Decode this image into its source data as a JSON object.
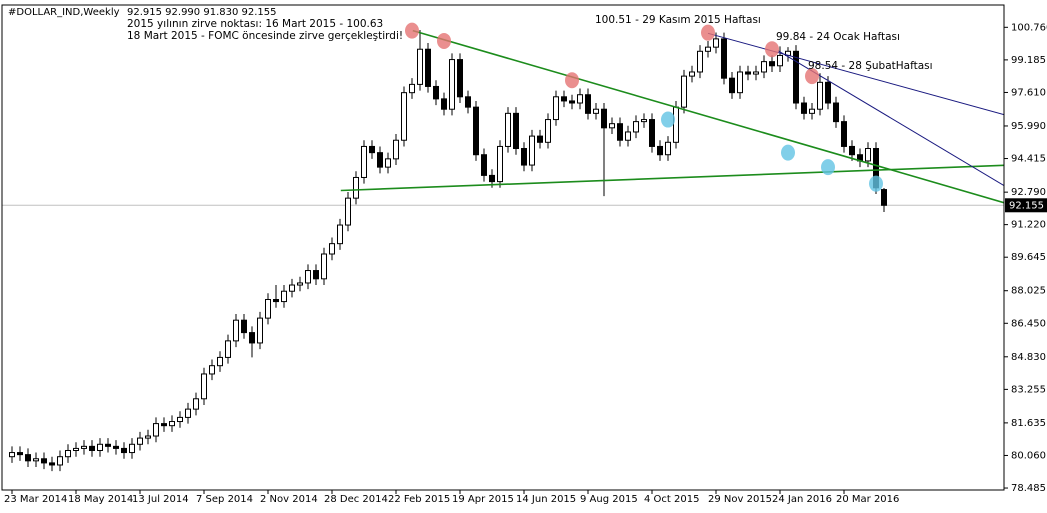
{
  "chart_data": {
    "type": "candlestick",
    "title": "#DOLLAR_IND,Weekly",
    "info": "92.915 92.990 91.830 92.155",
    "annotations": [
      "2015 yılının zirve noktası: 16 Mart 2015 - 100.63",
      "18 Mart 2015 - FOMC öncesinde zirve gerçekleştirdi!",
      "100.51 - 29 Kasım 2015 Haftası",
      "99.84 - 24 Ocak Haftası",
      "98.54 - 28 ŞubatHaftası"
    ],
    "categories": [
      "23 Mar 2014",
      null,
      null,
      null,
      null,
      null,
      null,
      null,
      "18 May 2014",
      null,
      null,
      null,
      null,
      null,
      null,
      null,
      "13 Jul 2014",
      null,
      null,
      null,
      null,
      null,
      null,
      null,
      "7 Sep 2014",
      null,
      null,
      null,
      null,
      null,
      null,
      null,
      "2 Nov 2014",
      null,
      null,
      null,
      null,
      null,
      null,
      null,
      "28 Dec 2014",
      null,
      null,
      null,
      null,
      null,
      null,
      null,
      "22 Feb 2015",
      null,
      null,
      null,
      null,
      null,
      null,
      null,
      "19 Apr 2015",
      null,
      null,
      null,
      null,
      null,
      null,
      null,
      "14 Jun 2015",
      null,
      null,
      null,
      null,
      null,
      null,
      null,
      "9 Aug 2015",
      null,
      null,
      null,
      null,
      null,
      null,
      null,
      "4 Oct 2015",
      null,
      null,
      null,
      null,
      null,
      null,
      null,
      "29 Nov 2015",
      null,
      null,
      null,
      null,
      null,
      null,
      null,
      "24 Jan 2016",
      null,
      null,
      null,
      null,
      null,
      null,
      null,
      "20 Mar 2016",
      null,
      null,
      null,
      null,
      null
    ],
    "open": [
      80.0,
      80.2,
      80.1,
      79.8,
      79.9,
      79.7,
      79.6,
      80.0,
      80.3,
      80.4,
      80.5,
      80.3,
      80.6,
      80.5,
      80.4,
      80.2,
      80.6,
      80.9,
      81.0,
      81.6,
      81.5,
      81.7,
      81.9,
      82.3,
      82.8,
      84.0,
      84.4,
      84.8,
      85.6,
      86.6,
      86.0,
      85.5,
      86.7,
      87.6,
      87.5,
      88.0,
      88.3,
      88.4,
      89.0,
      88.6,
      89.8,
      90.3,
      91.2,
      92.5,
      93.5,
      95.0,
      94.7,
      94.0,
      94.4,
      95.3,
      97.6,
      98.0,
      99.7,
      97.9,
      97.3,
      96.8,
      99.2,
      97.4,
      96.9,
      94.6,
      93.6,
      93.3,
      95.0,
      96.6,
      94.9,
      94.1,
      95.5,
      95.2,
      96.3,
      97.4,
      97.2,
      97.1,
      97.5,
      96.6,
      96.8,
      95.9,
      96.1,
      95.3,
      95.7,
      96.2,
      96.3,
      95.0,
      94.6,
      95.2,
      96.9,
      98.4,
      98.6,
      99.6,
      99.8,
      100.2,
      98.3,
      97.6,
      98.6,
      98.5,
      98.6,
      99.1,
      98.9,
      99.4,
      99.6,
      97.1,
      96.6,
      96.8,
      98.1,
      97.1,
      96.2,
      95.0,
      94.6,
      94.3,
      94.9,
      92.915
    ],
    "high": [
      80.5,
      80.5,
      80.4,
      80.2,
      80.2,
      80.0,
      80.3,
      80.6,
      80.7,
      80.8,
      80.8,
      80.9,
      80.9,
      80.8,
      80.7,
      80.9,
      81.2,
      81.3,
      81.9,
      81.9,
      82.0,
      82.2,
      82.6,
      83.1,
      84.3,
      84.7,
      85.1,
      85.9,
      86.9,
      86.9,
      86.3,
      87.0,
      87.9,
      88.3,
      88.3,
      88.6,
      88.7,
      89.3,
      89.3,
      90.1,
      90.6,
      91.5,
      92.8,
      93.8,
      95.3,
      95.3,
      95.0,
      94.7,
      95.6,
      97.9,
      98.3,
      100.63,
      100.0,
      98.2,
      97.6,
      99.5,
      99.5,
      97.7,
      97.2,
      94.9,
      93.9,
      95.3,
      96.9,
      96.9,
      95.2,
      95.8,
      95.8,
      96.6,
      97.7,
      97.7,
      97.5,
      97.8,
      97.8,
      97.1,
      97.1,
      96.4,
      96.4,
      96.0,
      96.5,
      96.6,
      96.6,
      95.3,
      95.5,
      97.2,
      98.7,
      98.9,
      99.9,
      100.1,
      100.51,
      100.5,
      98.6,
      98.9,
      98.9,
      98.9,
      99.4,
      99.4,
      99.84,
      99.8,
      99.9,
      97.4,
      97.1,
      98.54,
      98.4,
      97.4,
      96.5,
      95.3,
      94.9,
      95.2,
      95.2,
      92.99
    ],
    "low": [
      79.7,
      79.8,
      79.5,
      79.5,
      79.4,
      79.3,
      79.3,
      79.7,
      80.0,
      80.1,
      80.0,
      80.0,
      80.2,
      80.1,
      79.9,
      79.9,
      80.3,
      80.6,
      80.7,
      81.2,
      81.2,
      81.4,
      81.6,
      82.0,
      82.5,
      83.7,
      84.1,
      84.5,
      85.3,
      85.7,
      84.8,
      85.2,
      86.4,
      87.2,
      87.2,
      87.7,
      88.0,
      88.1,
      88.3,
      88.3,
      89.5,
      90.0,
      90.9,
      92.2,
      93.2,
      94.4,
      93.7,
      93.7,
      94.1,
      95.0,
      97.3,
      97.7,
      97.6,
      97.0,
      96.5,
      96.5,
      97.1,
      96.6,
      94.3,
      93.3,
      93.0,
      93.0,
      94.7,
      94.6,
      93.8,
      93.8,
      94.9,
      94.9,
      96.0,
      96.9,
      96.8,
      96.8,
      96.3,
      96.3,
      92.6,
      95.6,
      95.0,
      95.0,
      95.4,
      95.9,
      94.7,
      94.3,
      94.3,
      94.9,
      96.6,
      98.1,
      98.3,
      99.3,
      99.5,
      98.0,
      97.3,
      97.3,
      98.2,
      98.2,
      98.3,
      98.6,
      98.6,
      99.1,
      96.8,
      96.3,
      96.3,
      96.5,
      96.8,
      95.9,
      94.7,
      94.3,
      94.0,
      94.0,
      92.7,
      91.83
    ],
    "close": [
      80.2,
      80.1,
      79.8,
      79.9,
      79.7,
      79.6,
      80.0,
      80.3,
      80.4,
      80.5,
      80.3,
      80.6,
      80.5,
      80.4,
      80.2,
      80.6,
      80.9,
      81.0,
      81.6,
      81.5,
      81.7,
      81.9,
      82.3,
      82.8,
      84.0,
      84.4,
      84.8,
      85.6,
      86.6,
      86.0,
      85.5,
      86.7,
      87.6,
      87.5,
      88.0,
      88.3,
      88.4,
      89.0,
      88.6,
      89.8,
      90.3,
      91.2,
      92.5,
      93.5,
      95.0,
      94.7,
      94.0,
      94.4,
      95.3,
      97.6,
      98.0,
      99.7,
      97.9,
      97.3,
      96.8,
      99.2,
      97.4,
      96.9,
      94.6,
      93.6,
      93.3,
      95.0,
      96.6,
      94.9,
      94.1,
      95.5,
      95.2,
      96.3,
      97.4,
      97.2,
      97.1,
      97.5,
      96.6,
      96.8,
      95.9,
      96.1,
      95.3,
      95.7,
      96.2,
      96.3,
      95.0,
      94.6,
      95.2,
      96.9,
      98.4,
      98.6,
      99.6,
      99.8,
      100.2,
      98.3,
      97.6,
      98.6,
      98.5,
      98.6,
      99.1,
      98.9,
      99.4,
      99.6,
      97.1,
      96.6,
      96.8,
      98.1,
      97.1,
      96.2,
      95.0,
      94.6,
      94.3,
      94.9,
      93.0,
      92.155
    ],
    "up_color": "#ffffff",
    "down_color": "#000000",
    "wick_color": "#000000",
    "ylim": [
      78.39,
      101.79
    ],
    "yticks": [
      {
        "value": 100.76,
        "label": "100.760"
      },
      {
        "value": 99.185,
        "label": "99.185"
      },
      {
        "value": 97.61,
        "label": "97.610"
      },
      {
        "value": 95.99,
        "label": "95.990"
      },
      {
        "value": 94.415,
        "label": "94.415"
      },
      {
        "value": 92.79,
        "label": "92.790"
      },
      {
        "value": 91.22,
        "label": "91.220"
      },
      {
        "value": 89.645,
        "label": "89.645"
      },
      {
        "value": 88.025,
        "label": "88.025"
      },
      {
        "value": 86.45,
        "label": "86.450"
      },
      {
        "value": 84.83,
        "label": "84.830"
      },
      {
        "value": 83.255,
        "label": "83.255"
      },
      {
        "value": 81.635,
        "label": "81.635"
      },
      {
        "value": 80.06,
        "label": "80.060"
      },
      {
        "value": 78.485,
        "label": "78.485"
      }
    ],
    "grid": false,
    "trendlines": [
      {
        "color": "#1c8c1c",
        "x": [
          50.1,
          124
        ],
        "y": [
          100.6,
          92.28
        ]
      },
      {
        "color": "#1c8c1c",
        "x": [
          41.1,
          124
        ],
        "y": [
          92.87,
          94.09
        ]
      },
      {
        "color": "#1a1a80",
        "x": [
          87,
          124
        ],
        "y": [
          100.47,
          96.54
        ]
      },
      {
        "color": "#1a1a80",
        "x": [
          95.75,
          124
        ],
        "y": [
          99.63,
          93.11
        ]
      }
    ],
    "markers": [
      {
        "color": "#e57373",
        "x": [
          50,
          54,
          70,
          87,
          95,
          100
        ],
        "y": [
          100.6,
          100.1,
          98.2,
          100.5,
          99.7,
          98.4
        ]
      },
      {
        "color": "#62c3e3",
        "x": [
          82,
          97,
          102,
          108
        ],
        "y": [
          96.3,
          94.7,
          94.0,
          93.2
        ]
      }
    ]
  }
}
